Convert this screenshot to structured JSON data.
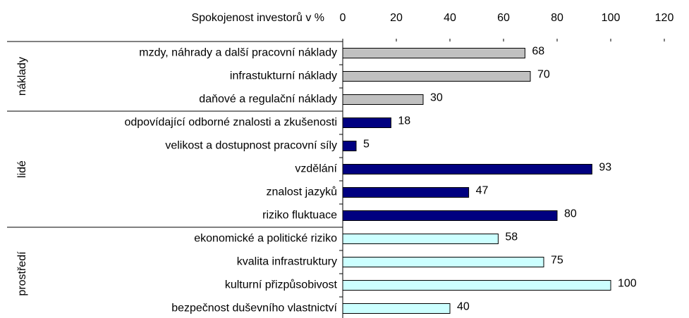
{
  "chart_data": {
    "type": "bar",
    "orientation": "horizontal",
    "x_label": "Spokojenost investorů v %",
    "categories": [
      "mzdy, náhrady a další pracovní náklady",
      "infrastukturní náklady",
      "daňové a regulační náklady",
      "odpovídající odborné znalosti a zkušenosti",
      "velikost a dostupnost pracovní síly",
      "vzdělání",
      "znalost jazyků",
      "riziko fluktuace",
      "ekonomické a politické riziko",
      "kvalita infrastruktury",
      "kulturní přizpůsobivost",
      "bezpečnost duševního vlastnictví"
    ],
    "series": [
      {
        "name": "náklady",
        "color": "#c0c0c0",
        "values": [
          68,
          70,
          30,
          null,
          null,
          null,
          null,
          null,
          null,
          null,
          null,
          null
        ]
      },
      {
        "name": "lidé",
        "color": "#000080",
        "values": [
          null,
          null,
          null,
          18,
          5,
          93,
          47,
          80,
          null,
          null,
          null,
          null
        ]
      },
      {
        "name": "prostředí",
        "color": "#ccffff",
        "values": [
          null,
          null,
          null,
          null,
          null,
          null,
          null,
          null,
          58,
          75,
          100,
          40
        ]
      }
    ],
    "xlim": [
      0,
      120
    ],
    "xticks": [
      0,
      20,
      40,
      60,
      80,
      100,
      120
    ]
  }
}
